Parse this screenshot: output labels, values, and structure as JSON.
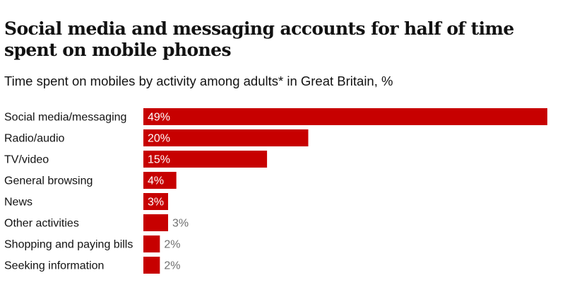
{
  "chart_data": {
    "type": "bar",
    "orientation": "horizontal",
    "title": "Social media and messaging accounts for half of time spent on mobile phones",
    "subtitle": "Time spent on mobiles by activity among adults* in Great Britain, %",
    "categories": [
      "Social media/messaging",
      "Radio/audio",
      "TV/video",
      "General browsing",
      "News",
      "Other activities",
      "Shopping and paying bills",
      "Seeking information"
    ],
    "values": [
      49,
      20,
      15,
      4,
      3,
      3,
      2,
      2
    ],
    "value_labels": [
      "49%",
      "20%",
      "15%",
      "4%",
      "3%",
      "3%",
      "2%",
      "2%"
    ],
    "xlim": [
      0,
      49
    ],
    "grid": false,
    "legend": "none",
    "colors": {
      "bar": "#c70000",
      "label_inside": "#ffffff",
      "label_outside": "#707070"
    }
  }
}
